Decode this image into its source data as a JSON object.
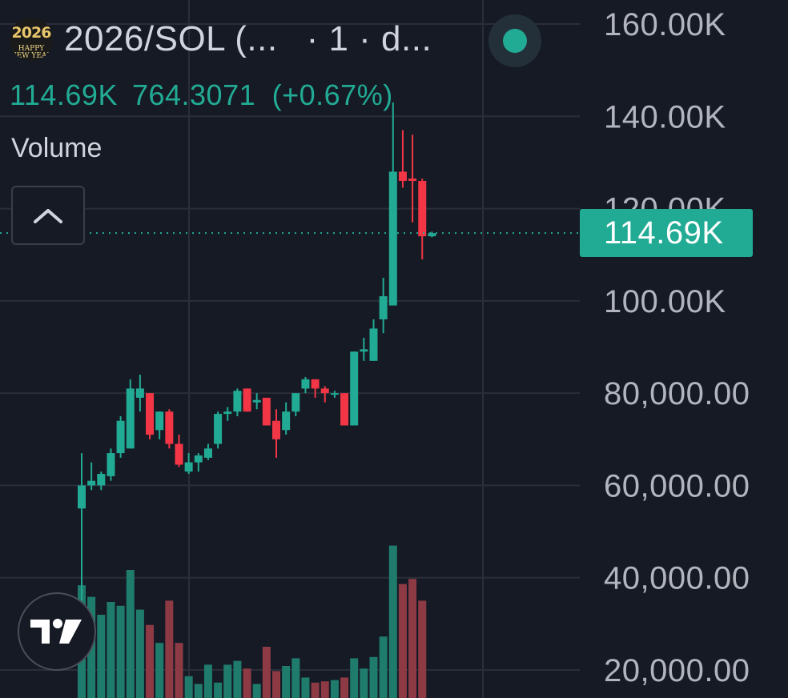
{
  "header": {
    "logo_year": "2026",
    "logo_sub1": "HAPPY",
    "logo_sub2": "NEW YEAR",
    "symbol": "2026/SOL (...",
    "interval": "· 1 · d..."
  },
  "ohlc": {
    "price": "114.69K",
    "change": "764.3071",
    "change_pct": "(+0.67%)"
  },
  "volume_label": "Volume",
  "colors": {
    "background": "#161a25",
    "up": "#22ab94",
    "down": "#f23645",
    "up_volume": "#1f7c6c",
    "down_volume": "#8d3a45",
    "grid": "#2a2e39",
    "axis_text": "#b2b5be"
  },
  "icons": {
    "collapse": "chevron-up-icon",
    "brand": "tradingview-logo-icon",
    "live": "live-status-dot-icon"
  },
  "price_tag": "114.69K",
  "chart_data": {
    "type": "candlestick",
    "y_axis_labels": [
      {
        "value": 160000,
        "label": "160.00K"
      },
      {
        "value": 140000,
        "label": "140.00K"
      },
      {
        "value": 120000,
        "label": "120.00K"
      },
      {
        "value": 100000,
        "label": "100.00K"
      },
      {
        "value": 80000,
        "label": "80,000.00"
      },
      {
        "value": 60000,
        "label": "60,000.00"
      },
      {
        "value": 40000,
        "label": "40,000.00"
      },
      {
        "value": 20000,
        "label": "20,000.00"
      }
    ],
    "last_price": 114690,
    "candles": [
      {
        "o": 55000,
        "h": 67000,
        "l": 35000,
        "c": 60000,
        "v": 0.88
      },
      {
        "o": 60000,
        "h": 65000,
        "l": 59000,
        "c": 61000,
        "v": 0.79
      },
      {
        "o": 60000,
        "h": 63000,
        "l": 59000,
        "c": 62500,
        "v": 0.65
      },
      {
        "o": 62000,
        "h": 68000,
        "l": 61000,
        "c": 67000,
        "v": 0.75
      },
      {
        "o": 67000,
        "h": 75000,
        "l": 66000,
        "c": 74000,
        "v": 0.72
      },
      {
        "o": 68000,
        "h": 83000,
        "l": 68000,
        "c": 81000,
        "v": 1.0
      },
      {
        "o": 79000,
        "h": 84000,
        "l": 76000,
        "c": 81000,
        "v": 0.69
      },
      {
        "o": 80000,
        "h": 80000,
        "l": 70000,
        "c": 71000,
        "v": 0.57
      },
      {
        "o": 72000,
        "h": 76000,
        "l": 70000,
        "c": 76000,
        "v": 0.43
      },
      {
        "o": 76000,
        "h": 76500,
        "l": 68000,
        "c": 69000,
        "v": 0.76
      },
      {
        "o": 69000,
        "h": 71000,
        "l": 64000,
        "c": 64500,
        "v": 0.43
      },
      {
        "o": 63000,
        "h": 67000,
        "l": 62500,
        "c": 65000,
        "v": 0.17
      },
      {
        "o": 65000,
        "h": 67000,
        "l": 63000,
        "c": 66500,
        "v": 0.11
      },
      {
        "o": 66000,
        "h": 69000,
        "l": 65500,
        "c": 68000,
        "v": 0.26
      },
      {
        "o": 69000,
        "h": 76000,
        "l": 68000,
        "c": 75500,
        "v": 0.12
      },
      {
        "o": 75500,
        "h": 77000,
        "l": 74000,
        "c": 76000,
        "v": 0.26
      },
      {
        "o": 76000,
        "h": 81000,
        "l": 75000,
        "c": 80500,
        "v": 0.29
      },
      {
        "o": 81000,
        "h": 81000,
        "l": 76000,
        "c": 76000,
        "v": 0.23
      },
      {
        "o": 78000,
        "h": 80000,
        "l": 76500,
        "c": 78500,
        "v": 0.11
      },
      {
        "o": 79000,
        "h": 79000,
        "l": 73000,
        "c": 73000,
        "v": 0.4
      },
      {
        "o": 74000,
        "h": 76500,
        "l": 66000,
        "c": 70000,
        "v": 0.21
      },
      {
        "o": 72000,
        "h": 78000,
        "l": 71000,
        "c": 76000,
        "v": 0.25
      },
      {
        "o": 76000,
        "h": 80000,
        "l": 75000,
        "c": 80000,
        "v": 0.31
      },
      {
        "o": 81000,
        "h": 83500,
        "l": 80000,
        "c": 83000,
        "v": 0.16
      },
      {
        "o": 83000,
        "h": 83000,
        "l": 79000,
        "c": 81000,
        "v": 0.12
      },
      {
        "o": 81000,
        "h": 81500,
        "l": 78000,
        "c": 80000,
        "v": 0.13
      },
      {
        "o": 80000,
        "h": 80500,
        "l": 79000,
        "c": 80000,
        "v": 0.14
      },
      {
        "o": 80000,
        "h": 80000,
        "l": 73000,
        "c": 73000,
        "v": 0.16
      },
      {
        "o": 73000,
        "h": 89000,
        "l": 73000,
        "c": 89000,
        "v": 0.31
      },
      {
        "o": 89000,
        "h": 92000,
        "l": 87000,
        "c": 89500,
        "v": 0.23
      },
      {
        "o": 87000,
        "h": 96000,
        "l": 87000,
        "c": 94000,
        "v": 0.32
      },
      {
        "o": 96000,
        "h": 105000,
        "l": 93000,
        "c": 101000,
        "v": 0.48
      },
      {
        "o": 99000,
        "h": 143000,
        "l": 99000,
        "c": 128000,
        "v": 1.19
      },
      {
        "o": 128000,
        "h": 137000,
        "l": 124500,
        "c": 126000,
        "v": 0.89
      },
      {
        "o": 126500,
        "h": 136000,
        "l": 117000,
        "c": 126000,
        "v": 0.93
      },
      {
        "o": 126000,
        "h": 126500,
        "l": 109000,
        "c": 114000,
        "v": 0.76
      },
      {
        "o": 114000,
        "h": 115000,
        "l": 113800,
        "c": 114690,
        "v": 0.0
      }
    ]
  }
}
